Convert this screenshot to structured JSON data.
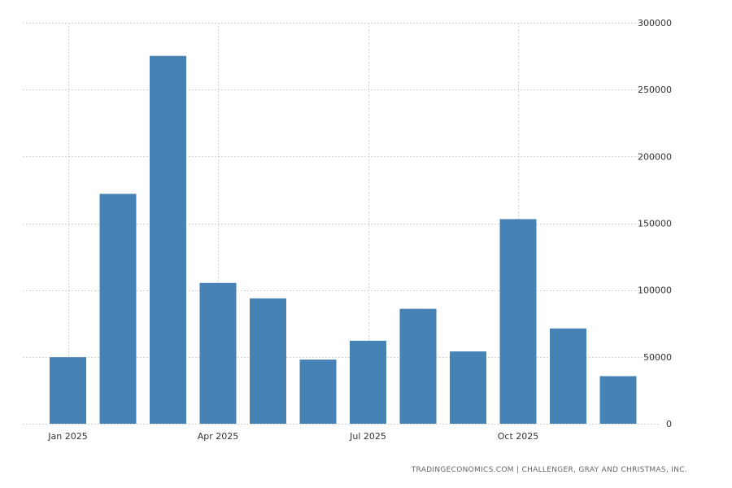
{
  "chart_data": {
    "type": "bar",
    "title": "",
    "xlabel": "",
    "ylabel": "",
    "ylim": [
      0,
      300000
    ],
    "yticks": [
      "0",
      "50000",
      "100000",
      "150000",
      "200000",
      "250000",
      "300000"
    ],
    "ytick_values": [
      0,
      50000,
      100000,
      150000,
      200000,
      250000,
      300000
    ],
    "categories": [
      "Jan 2025",
      "Feb 2025",
      "Mar 2025",
      "Apr 2025",
      "May 2025",
      "Jun 2025",
      "Jul 2025",
      "Aug 2025",
      "Sep 2025",
      "Oct 2025",
      "Nov 2025",
      "Dec 2025"
    ],
    "values": [
      49800,
      172000,
      275200,
      105400,
      93800,
      48000,
      62100,
      86000,
      54100,
      153100,
      71300,
      35600
    ],
    "xticks": [
      {
        "label": "Jan 2025",
        "index": 0
      },
      {
        "label": "Apr 2025",
        "index": 3
      },
      {
        "label": "Jul 2025",
        "index": 6
      },
      {
        "label": "Oct 2025",
        "index": 9
      }
    ],
    "grid": true,
    "bar_color": "#4682b4",
    "grid_color": "#d3d3d3"
  },
  "source_text": "TRADINGECONOMICS.COM  |  CHALLENGER, GRAY AND CHRISTMAS, INC."
}
